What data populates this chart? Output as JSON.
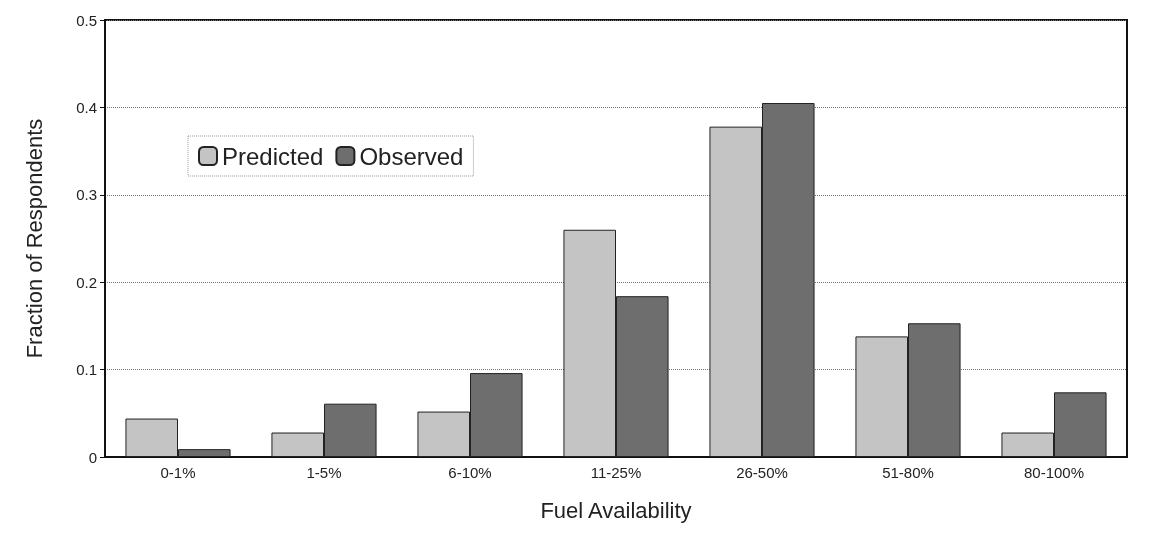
{
  "chart_data": {
    "type": "bar",
    "xlabel": "Fuel Availability",
    "ylabel": "Fraction of Respondents",
    "categories": [
      "0-1%",
      "1-5%",
      "6-10%",
      "11-25%",
      "26-50%",
      "51-80%",
      "80-100%"
    ],
    "series": [
      {
        "name": "Predicted",
        "color": "#c4c4c4",
        "values": [
          0.044,
          0.028,
          0.052,
          0.26,
          0.378,
          0.138,
          0.028
        ]
      },
      {
        "name": "Observed",
        "color": "#6e6e6e",
        "values": [
          0.009,
          0.061,
          0.096,
          0.184,
          0.405,
          0.153,
          0.074
        ]
      }
    ],
    "ylim": [
      0,
      0.5
    ],
    "yticks": [
      0,
      0.1,
      0.2,
      0.3,
      0.4,
      0.5
    ],
    "grid": "y",
    "legend": "top left"
  }
}
